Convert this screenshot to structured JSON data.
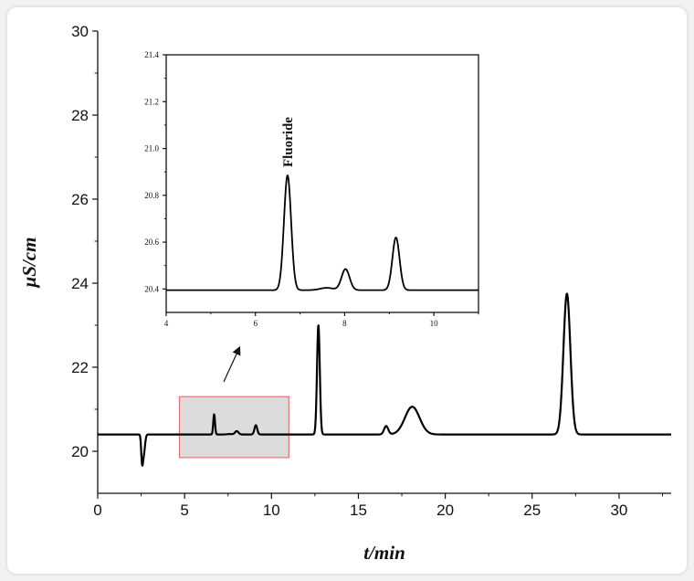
{
  "chart_data": [
    {
      "type": "line",
      "title": "",
      "xlabel": "t/min",
      "ylabel": "μS/cm",
      "xlim": [
        0,
        33
      ],
      "ylim": [
        19,
        30
      ],
      "x_ticks": [
        0,
        5,
        10,
        15,
        20,
        25,
        30
      ],
      "y_ticks": [
        20,
        22,
        24,
        26,
        28,
        30
      ],
      "grid": false,
      "series": [
        {
          "baseline": 20.4,
          "line_color": "#000000",
          "peaks": [
            {
              "t": 2.55,
              "height": -0.55,
              "width": 0.05
            },
            {
              "t": 2.65,
              "height": -0.45,
              "width": 0.07
            },
            {
              "t": 6.7,
              "height": 0.48,
              "width": 0.05
            },
            {
              "t": 7.6,
              "height": 0.01,
              "width": 0.15
            },
            {
              "t": 8.0,
              "height": 0.08,
              "width": 0.1
            },
            {
              "t": 9.1,
              "height": 0.22,
              "width": 0.08
            },
            {
              "t": 12.7,
              "height": 2.6,
              "width": 0.08
            },
            {
              "t": 16.6,
              "height": 0.2,
              "width": 0.12
            },
            {
              "t": 18.1,
              "height": 0.66,
              "width": 0.42
            },
            {
              "t": 27.0,
              "height": 3.35,
              "width": 0.2
            }
          ]
        }
      ],
      "highlight_box": {
        "x": [
          4.7,
          11.0
        ],
        "y": [
          19.85,
          21.3
        ],
        "stroke": "#e57373",
        "fill": "#dcdcdc"
      }
    },
    {
      "type": "line",
      "title": "",
      "xlabel": "",
      "ylabel": "",
      "xlim": [
        4,
        11
      ],
      "ylim": [
        20.3,
        21.4
      ],
      "x_ticks": [
        4,
        6,
        8,
        10
      ],
      "y_ticks": [
        20.4,
        20.6,
        20.8,
        21.0,
        21.2,
        21.4
      ],
      "y_tick_labels": [
        "20.4",
        "20.6",
        "20.8",
        "21.0",
        "21.2",
        "21.4"
      ],
      "grid": false,
      "series": [
        {
          "baseline": 20.395,
          "line_color": "#000000",
          "peaks": [
            {
              "t": 6.72,
              "height": 0.49,
              "width": 0.08
            },
            {
              "t": 7.6,
              "height": 0.01,
              "width": 0.15
            },
            {
              "t": 8.02,
              "height": 0.09,
              "width": 0.09
            },
            {
              "t": 9.15,
              "height": 0.225,
              "width": 0.08
            }
          ]
        }
      ],
      "annotations": [
        {
          "text": "Fluoride",
          "x": 6.72,
          "y": 20.92,
          "orientation": "vertical"
        }
      ]
    }
  ]
}
